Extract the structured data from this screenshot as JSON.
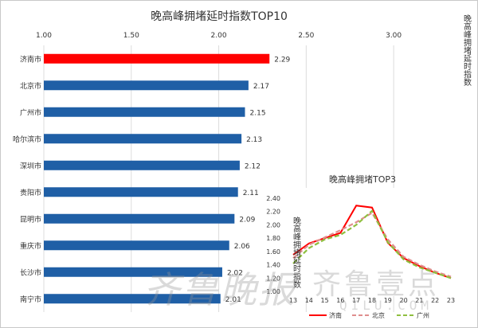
{
  "colors": {
    "highlight": "#ff0000",
    "bar": "#1f5fa6",
    "jinan": "#ff0000",
    "beijing": "#e08e8e",
    "guangzhou": "#8fbf3f"
  },
  "watermark": {
    "left": "齐鲁晚报",
    "right": "齐鲁壹点",
    "url": "QILU.COM"
  },
  "chart_data": [
    {
      "type": "bar",
      "orientation": "horizontal",
      "title": "晚高峰拥堵延时指数TOP10",
      "axis_label": "晚高峰拥堵延时指数",
      "categories": [
        "济南市",
        "北京市",
        "广州市",
        "哈尔滨市",
        "深圳市",
        "贵阳市",
        "昆明市",
        "重庆市",
        "长沙市",
        "南宁市"
      ],
      "values": [
        2.29,
        2.17,
        2.15,
        2.13,
        2.12,
        2.11,
        2.09,
        2.06,
        2.02,
        2.01
      ],
      "value_labels": [
        "2.29",
        "2.17",
        "2.15",
        "2.13",
        "2.12",
        "2.11",
        "2.09",
        "2.06",
        "2.02",
        "2.01"
      ],
      "xlim": [
        1.0,
        3.3
      ],
      "xticks": [
        1.0,
        1.5,
        2.0,
        2.5,
        3.0
      ],
      "xtick_labels": [
        "1.00",
        "1.50",
        "2.00",
        "2.50",
        "3.00"
      ],
      "highlight_index": 0,
      "grid": true
    },
    {
      "type": "line",
      "title": "晚高峰拥堵TOP3",
      "ylabel": "晚高峰拥堵延时指数",
      "x": [
        13,
        14,
        15,
        16,
        17,
        18,
        19,
        20,
        21,
        22,
        23
      ],
      "xtick_labels": [
        "13",
        "14",
        "15",
        "16",
        "17",
        "18",
        "19",
        "20",
        "21",
        "22",
        "23"
      ],
      "ylim": [
        1.0,
        2.4
      ],
      "yticks": [
        1.0,
        1.2,
        1.4,
        1.6,
        1.8,
        2.0,
        2.2,
        2.4
      ],
      "ytick_labels": [
        "1.00",
        "1.20",
        "1.40",
        "1.60",
        "1.80",
        "2.00",
        "2.20",
        "2.40"
      ],
      "series": [
        {
          "name": "济南",
          "values": [
            1.55,
            1.72,
            1.8,
            1.88,
            2.29,
            2.26,
            1.73,
            1.5,
            1.38,
            1.28,
            1.2
          ],
          "style": "solid"
        },
        {
          "name": "北京",
          "values": [
            1.5,
            1.7,
            1.81,
            1.92,
            2.04,
            2.18,
            1.78,
            1.52,
            1.4,
            1.3,
            1.22
          ],
          "style": "dashed"
        },
        {
          "name": "广州",
          "values": [
            1.42,
            1.65,
            1.78,
            1.85,
            2.0,
            2.21,
            1.74,
            1.48,
            1.36,
            1.28,
            1.2
          ],
          "style": "dashed"
        }
      ],
      "legend_position": "bottom"
    }
  ]
}
